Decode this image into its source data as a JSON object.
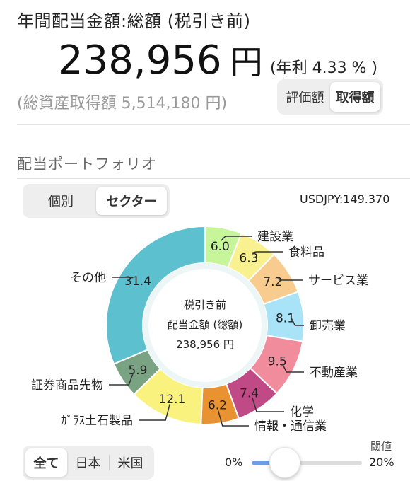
{
  "header": {
    "title": "年間配当金額:総額 (税引き前)",
    "amount": "238,956",
    "amount_unit": "円",
    "yield_text": "(年利 4.33 % )",
    "acquisition_text": "(総資産取得額 5,514,180 円)"
  },
  "basis_toggle": {
    "options": [
      "評価額",
      "取得額"
    ],
    "selected": "取得額"
  },
  "portfolio": {
    "section_title": "配当ポートフォリオ",
    "view_toggle": {
      "options": [
        "個別",
        "セクター"
      ],
      "selected": "セクター"
    },
    "fx_rate": "USDJPY:149.370"
  },
  "chart_data": {
    "type": "pie",
    "donut": true,
    "center_text": [
      "税引き前",
      "配当金額 (総額)",
      "238,956 円"
    ],
    "slices": [
      {
        "label": "建設業",
        "value": 6.0,
        "value_label": "6.0",
        "color": "#c6f59a"
      },
      {
        "label": "食料品",
        "value": 6.3,
        "value_label": "6.3",
        "color": "#f9f08f"
      },
      {
        "label": "サービス業",
        "value": 7.2,
        "value_label": "7.2",
        "color": "#f7cc8e"
      },
      {
        "label": "卸売業",
        "value": 8.1,
        "value_label": "8.1",
        "color": "#a8e3f7"
      },
      {
        "label": "不動産業",
        "value": 9.5,
        "value_label": "9.5",
        "color": "#f08c9c"
      },
      {
        "label": "化学",
        "value": 7.4,
        "value_label": "7.4",
        "color": "#c04a86"
      },
      {
        "label": "情報・通信業",
        "value": 6.2,
        "value_label": "6.2",
        "color": "#e89232"
      },
      {
        "label": "ｶﾞﾗｽ土石製品",
        "value": 12.1,
        "value_label": "12.1",
        "color": "#f9f27e"
      },
      {
        "label": "証券商品先物",
        "value": 5.9,
        "value_label": "5.9",
        "color": "#7aa384"
      },
      {
        "label": "その他",
        "value": 31.4,
        "value_label": "31.4",
        "color": "#5cc0cf"
      }
    ]
  },
  "region_toggle": {
    "options": [
      "全て",
      "日本",
      "米国"
    ],
    "selected": "全て"
  },
  "threshold": {
    "label": "閾値",
    "min_label": "0%",
    "max_label": "20%",
    "value_fraction": 0.3
  }
}
